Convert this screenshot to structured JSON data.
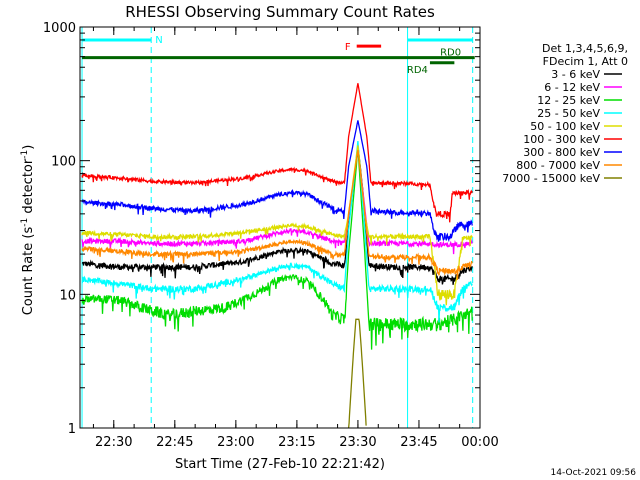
{
  "chart_data": {
    "type": "line",
    "title": "RHESSI Observing Summary Count Rates",
    "xlabel": "Start Time (27-Feb-10 22:21:42)",
    "ylabel": "Count Rate (s⁻¹ detector⁻¹)",
    "ylabel_main": "Count Rate (s",
    "ylabel_sup1": "-1",
    "ylabel_mid": " detector",
    "ylabel_sup2": "-1",
    "ylabel_end": ")",
    "yscale": "log",
    "ylim": [
      1,
      1000
    ],
    "xlim_minutes": [
      0,
      98.3
    ],
    "x_ticks": [
      {
        "label": "22:30",
        "minute": 8.3
      },
      {
        "label": "22:45",
        "minute": 23.3
      },
      {
        "label": "23:00",
        "minute": 38.3
      },
      {
        "label": "23:15",
        "minute": 53.3
      },
      {
        "label": "23:30",
        "minute": 68.3
      },
      {
        "label": "23:45",
        "minute": 83.3
      },
      {
        "label": "00:00",
        "minute": 98.3
      }
    ],
    "y_ticks": [
      {
        "label": "1",
        "value": 1
      },
      {
        "label": "10",
        "value": 10
      },
      {
        "label": "100",
        "value": 100
      },
      {
        "label": "1000",
        "value": 1000
      }
    ],
    "legend_header": [
      "Det 1,3,4,5,6,9,",
      "FDecim 1, Att 0"
    ],
    "footer_date": "14-Oct-2021 09:56",
    "series": [
      {
        "name": "3 - 6 keV",
        "color": "#000000",
        "base": 17,
        "hump": 4,
        "peak": 130,
        "peak_w": 1.6,
        "post": 13,
        "noise": 0.8,
        "points": [
          [
            0.5,
            17
          ],
          [
            10,
            16
          ],
          [
            18,
            16
          ],
          [
            28,
            16
          ],
          [
            40,
            17.5
          ],
          [
            49,
            21
          ],
          [
            52,
            21.5
          ],
          [
            56,
            21
          ],
          [
            62,
            17
          ],
          [
            65,
            16.5
          ],
          [
            67,
            60
          ],
          [
            68.3,
            130
          ],
          [
            69.5,
            60
          ],
          [
            71,
            16.5
          ],
          [
            77,
            16
          ],
          [
            83,
            16
          ],
          [
            86,
            16
          ],
          [
            88,
            13
          ],
          [
            92,
            13
          ],
          [
            94,
            15
          ],
          [
            96.5,
            16
          ]
        ]
      },
      {
        "name": "6 - 12 keV",
        "color": "#ff00ff",
        "base": 25,
        "hump": 4,
        "peak": 120,
        "peak_w": 1.6,
        "post": 24,
        "noise": 1.0,
        "points": [
          [
            0.5,
            25
          ],
          [
            10,
            25
          ],
          [
            18,
            24
          ],
          [
            28,
            24
          ],
          [
            40,
            25
          ],
          [
            49,
            29
          ],
          [
            52,
            30
          ],
          [
            56,
            29
          ],
          [
            62,
            25
          ],
          [
            65,
            24
          ],
          [
            67,
            60
          ],
          [
            68.3,
            120
          ],
          [
            69.5,
            60
          ],
          [
            71,
            24
          ],
          [
            77,
            24
          ],
          [
            83,
            24
          ],
          [
            86,
            24
          ],
          [
            88,
            23.5
          ],
          [
            92,
            23.5
          ],
          [
            94,
            24
          ],
          [
            96.5,
            24
          ]
        ]
      },
      {
        "name": "12 - 25 keV",
        "color": "#00dd00",
        "base": 9,
        "hump": 4,
        "peak": 125,
        "peak_w": 1.5,
        "post": 7,
        "noise": 0.7,
        "points": [
          [
            0.5,
            9
          ],
          [
            5,
            9.3
          ],
          [
            10,
            9
          ],
          [
            18,
            7.5
          ],
          [
            22,
            7
          ],
          [
            28,
            7.5
          ],
          [
            36,
            8
          ],
          [
            44,
            10.5
          ],
          [
            49,
            13
          ],
          [
            52,
            13.5
          ],
          [
            56,
            12.5
          ],
          [
            60,
            9
          ],
          [
            62,
            7
          ],
          [
            65,
            6.5
          ],
          [
            66,
            20
          ],
          [
            68.3,
            125
          ],
          [
            70,
            20
          ],
          [
            71,
            6
          ],
          [
            77,
            6
          ],
          [
            81,
            6
          ],
          [
            83,
            6
          ],
          [
            86,
            6
          ],
          [
            88,
            6
          ],
          [
            92,
            6.5
          ],
          [
            94,
            7
          ],
          [
            96.5,
            7.5
          ]
        ]
      },
      {
        "name": "25 - 50 keV",
        "color": "#00ffff",
        "base": 11,
        "hump": 3,
        "peak": 140,
        "peak_w": 1.5,
        "post": 8,
        "noise": 0.6,
        "points": [
          [
            0.5,
            13
          ],
          [
            10,
            12
          ],
          [
            18,
            11
          ],
          [
            28,
            11
          ],
          [
            40,
            13
          ],
          [
            49,
            16
          ],
          [
            52,
            16.5
          ],
          [
            56,
            16
          ],
          [
            62,
            12
          ],
          [
            65,
            11
          ],
          [
            66,
            30
          ],
          [
            68.3,
            140
          ],
          [
            70,
            30
          ],
          [
            71,
            11
          ],
          [
            77,
            11
          ],
          [
            83,
            11
          ],
          [
            86,
            11
          ],
          [
            88,
            8
          ],
          [
            92,
            8
          ],
          [
            94,
            11
          ],
          [
            96.5,
            12
          ]
        ]
      },
      {
        "name": "50 - 100 keV",
        "color": "#dddd00",
        "base": 28,
        "hump": 4,
        "peak": 130,
        "peak_w": 1.5,
        "post": 10,
        "noise": 1.0,
        "points": [
          [
            0.5,
            29
          ],
          [
            10,
            28
          ],
          [
            18,
            27
          ],
          [
            28,
            27
          ],
          [
            40,
            29
          ],
          [
            49,
            32
          ],
          [
            52,
            33
          ],
          [
            56,
            32
          ],
          [
            62,
            28
          ],
          [
            65,
            27
          ],
          [
            66,
            40
          ],
          [
            68.3,
            130
          ],
          [
            70,
            40
          ],
          [
            71,
            27
          ],
          [
            77,
            27
          ],
          [
            83,
            27
          ],
          [
            86,
            27
          ],
          [
            88,
            10
          ],
          [
            92,
            10
          ],
          [
            94,
            26
          ],
          [
            96.5,
            27
          ]
        ]
      },
      {
        "name": "100 - 300 keV",
        "color": "#ff0000",
        "base": 75,
        "hump": 10,
        "peak": 380,
        "peak_w": 1.8,
        "post": 57,
        "noise": 2.0,
        "points": [
          [
            0.5,
            78
          ],
          [
            10,
            74
          ],
          [
            18,
            70
          ],
          [
            28,
            68
          ],
          [
            40,
            74
          ],
          [
            49,
            84
          ],
          [
            52,
            86
          ],
          [
            56,
            84
          ],
          [
            62,
            70
          ],
          [
            65,
            68
          ],
          [
            66,
            150
          ],
          [
            68.3,
            380
          ],
          [
            70.5,
            150
          ],
          [
            71.5,
            68
          ],
          [
            77,
            68
          ],
          [
            83,
            67
          ],
          [
            86,
            66
          ],
          [
            87.5,
            40
          ],
          [
            91,
            40
          ],
          [
            91.5,
            57
          ],
          [
            96.5,
            58
          ]
        ]
      },
      {
        "name": "300 - 800 keV",
        "color": "#0000ff",
        "base": 46,
        "hump": 8,
        "peak": 200,
        "peak_w": 1.7,
        "post": 32,
        "noise": 1.8,
        "points": [
          [
            0.5,
            49
          ],
          [
            10,
            47
          ],
          [
            18,
            44
          ],
          [
            28,
            42
          ],
          [
            40,
            47
          ],
          [
            49,
            56
          ],
          [
            52,
            58
          ],
          [
            56,
            56
          ],
          [
            62,
            44
          ],
          [
            65,
            42
          ],
          [
            66,
            90
          ],
          [
            68.3,
            200
          ],
          [
            70.5,
            90
          ],
          [
            71.5,
            42
          ],
          [
            77,
            41
          ],
          [
            83,
            41
          ],
          [
            86,
            40
          ],
          [
            87.5,
            27
          ],
          [
            91,
            27
          ],
          [
            93,
            33
          ],
          [
            96.5,
            34
          ]
        ]
      },
      {
        "name": "800 - 7000 keV",
        "color": "#ff8800",
        "base": 21,
        "hump": 3,
        "peak": 120,
        "peak_w": 1.5,
        "post": 15,
        "noise": 0.8,
        "points": [
          [
            0.5,
            22
          ],
          [
            10,
            21
          ],
          [
            18,
            20
          ],
          [
            28,
            20
          ],
          [
            40,
            21
          ],
          [
            49,
            24
          ],
          [
            52,
            25
          ],
          [
            56,
            24
          ],
          [
            62,
            20
          ],
          [
            65,
            19.5
          ],
          [
            66,
            40
          ],
          [
            68.3,
            120
          ],
          [
            70,
            40
          ],
          [
            71,
            19.5
          ],
          [
            77,
            19
          ],
          [
            83,
            19
          ],
          [
            86,
            19
          ],
          [
            88,
            15
          ],
          [
            92,
            15
          ],
          [
            94,
            16
          ],
          [
            96.5,
            17
          ]
        ]
      },
      {
        "name": "7000 - 15000 keV",
        "color": "#808000",
        "base": 0.9,
        "hump": 0,
        "peak": 6.5,
        "peak_w": 1.2,
        "post": 0.9,
        "noise": 0.0,
        "points": [
          [
            66,
            0.95
          ],
          [
            67,
            3
          ],
          [
            67.8,
            6.5
          ],
          [
            68.6,
            6.5
          ],
          [
            69.4,
            3
          ],
          [
            70.4,
            0.95
          ]
        ]
      }
    ],
    "annotations": [
      {
        "label": "N",
        "color": "#00ffff",
        "segments": [
          [
            0.5,
            17.5
          ]
        ],
        "level": 800
      },
      {
        "label": "F",
        "color": "#ff0000",
        "segments": [
          [
            68,
            74
          ]
        ],
        "level": 720
      },
      {
        "label": "RD4",
        "color": "#006400",
        "segments": [
          [
            86,
            92
          ]
        ],
        "level": 540
      },
      {
        "label": "RD0",
        "color": "#006400",
        "segments": [
          [
            0.5,
            97
          ]
        ],
        "level": 590
      }
    ],
    "vlines": [
      {
        "name": "night-start",
        "color": "#00ffff",
        "minute": 0.5,
        "style": "solid"
      },
      {
        "name": "saa-dashed-1",
        "color": "#00ffff",
        "minute": 17.5,
        "style": "dashed"
      },
      {
        "name": "night-end",
        "color": "#00ffff",
        "minute": 80.5,
        "style": "solid"
      },
      {
        "name": "saa-dashed-2",
        "color": "#00ffff",
        "minute": 96.5,
        "style": "dashed"
      }
    ],
    "top_cyan_right": [
      [
        80.5,
        96.5
      ]
    ]
  }
}
